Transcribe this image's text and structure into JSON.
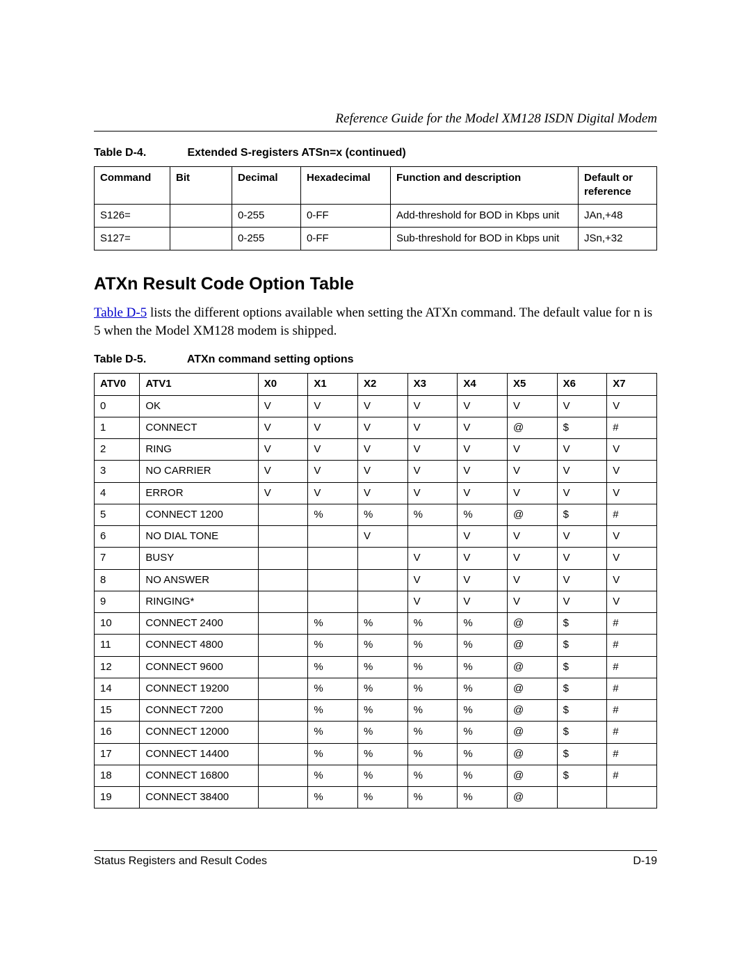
{
  "header": {
    "running_title": "Reference Guide for the Model XM128 ISDN Digital Modem"
  },
  "table_d4": {
    "caption_num": "Table D-4.",
    "caption_text": "Extended S-registers ATSn=x (continued)",
    "columns": [
      "Command",
      "Bit",
      "Decimal",
      "Hexadecimal",
      "Function and description",
      "Default or reference"
    ],
    "rows": [
      [
        "S126=",
        "",
        "0-255",
        "0-FF",
        "Add-threshold for BOD in Kbps unit",
        "JAn,+48"
      ],
      [
        "S127=",
        "",
        "0-255",
        "0-FF",
        "Sub-threshold for BOD in Kbps unit",
        "JSn,+32"
      ]
    ]
  },
  "section": {
    "heading": "ATXn Result Code Option Table",
    "link_text": "Table D-5",
    "para_rest": " lists the different options available when setting the ATXn command. The default value for n is 5 when the Model XM128 modem is shipped."
  },
  "table_d5": {
    "caption_num": "Table D-5.",
    "caption_text": "ATXn command setting options",
    "columns": [
      "ATV0",
      "ATV1",
      "X0",
      "X1",
      "X2",
      "X3",
      "X4",
      "X5",
      "X6",
      "X7"
    ],
    "rows": [
      [
        "0",
        "OK",
        "V",
        "V",
        "V",
        "V",
        "V",
        "V",
        "V",
        "V"
      ],
      [
        "1",
        "CONNECT",
        "V",
        "V",
        "V",
        "V",
        "V",
        "@",
        "$",
        "#"
      ],
      [
        "2",
        "RING",
        "V",
        "V",
        "V",
        "V",
        "V",
        "V",
        "V",
        "V"
      ],
      [
        "3",
        "NO CARRIER",
        "V",
        "V",
        "V",
        "V",
        "V",
        "V",
        "V",
        "V"
      ],
      [
        "4",
        "ERROR",
        "V",
        "V",
        "V",
        "V",
        "V",
        "V",
        "V",
        "V"
      ],
      [
        "5",
        "CONNECT 1200",
        "",
        "%",
        "%",
        "%",
        "%",
        "@",
        "$",
        "#"
      ],
      [
        "6",
        "NO DIAL TONE",
        "",
        "",
        "V",
        "",
        "V",
        "V",
        "V",
        "V"
      ],
      [
        "7",
        "BUSY",
        "",
        "",
        "",
        "V",
        "V",
        "V",
        "V",
        "V"
      ],
      [
        "8",
        "NO ANSWER",
        "",
        "",
        "",
        "V",
        "V",
        "V",
        "V",
        "V"
      ],
      [
        "9",
        "RINGING*",
        "",
        "",
        "",
        "V",
        "V",
        "V",
        "V",
        "V"
      ],
      [
        "10",
        "CONNECT 2400",
        "",
        "%",
        "%",
        "%",
        "%",
        "@",
        "$",
        "#"
      ],
      [
        "11",
        "CONNECT 4800",
        "",
        "%",
        "%",
        "%",
        "%",
        "@",
        "$",
        "#"
      ],
      [
        "12",
        "CONNECT 9600",
        "",
        "%",
        "%",
        "%",
        "%",
        "@",
        "$",
        "#"
      ],
      [
        "14",
        "CONNECT 19200",
        "",
        "%",
        "%",
        "%",
        "%",
        "@",
        "$",
        "#"
      ],
      [
        "15",
        "CONNECT 7200",
        "",
        "%",
        "%",
        "%",
        "%",
        "@",
        "$",
        "#"
      ],
      [
        "16",
        "CONNECT 12000",
        "",
        "%",
        "%",
        "%",
        "%",
        "@",
        "$",
        "#"
      ],
      [
        "17",
        "CONNECT 14400",
        "",
        "%",
        "%",
        "%",
        "%",
        "@",
        "$",
        "#"
      ],
      [
        "18",
        "CONNECT 16800",
        "",
        "%",
        "%",
        "%",
        "%",
        "@",
        "$",
        "#"
      ],
      [
        "19",
        "CONNECT 38400",
        "",
        "%",
        "%",
        "%",
        "%",
        "@",
        "",
        ""
      ]
    ]
  },
  "footer": {
    "left": "Status Registers and Result Codes",
    "right": "D-19"
  }
}
